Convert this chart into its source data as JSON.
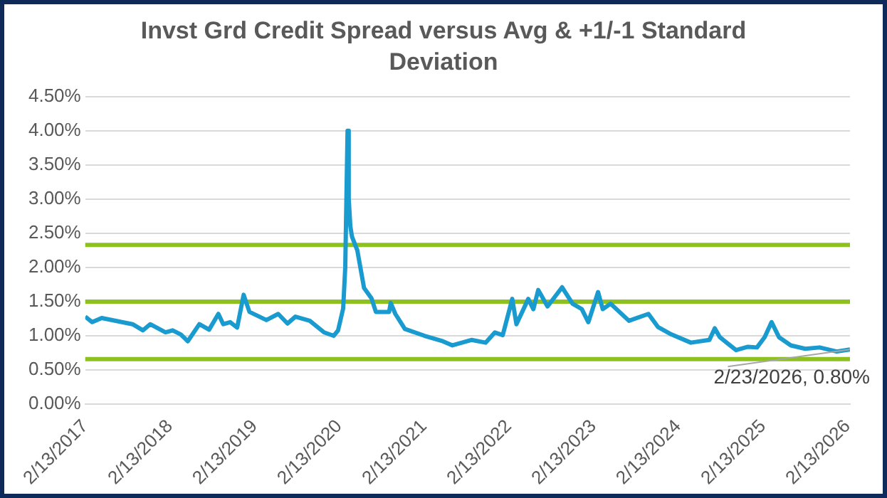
{
  "chart_data": {
    "type": "line",
    "title": "Invst Grd Credit Spread versus Avg & +1/-1 Standard Deviation",
    "x": [
      "2017-02-13",
      "2017-03-15",
      "2017-04-25",
      "2017-09-05",
      "2017-10-20",
      "2017-11-20",
      "2018-01-25",
      "2018-02-25",
      "2018-04-01",
      "2018-05-01",
      "2018-06-20",
      "2018-08-01",
      "2018-09-10",
      "2018-10-01",
      "2018-10-31",
      "2018-11-30",
      "2018-12-28",
      "2019-01-22",
      "2019-04-05",
      "2019-05-26",
      "2019-07-05",
      "2019-08-08",
      "2019-10-09",
      "2019-12-10",
      "2020-01-20",
      "2020-02-08",
      "2020-03-01",
      "2020-03-10",
      "2020-03-20",
      "2020-03-25",
      "2020-04-01",
      "2020-04-08",
      "2020-05-01",
      "2020-05-30",
      "2020-07-01",
      "2020-07-20",
      "2020-09-15",
      "2020-09-22",
      "2020-10-12",
      "2020-11-22",
      "2021-02-15",
      "2021-05-05",
      "2021-06-15",
      "2021-09-05",
      "2021-11-05",
      "2021-12-15",
      "2022-01-18",
      "2022-02-28",
      "2022-03-18",
      "2022-05-08",
      "2022-05-30",
      "2022-06-20",
      "2022-07-30",
      "2022-10-01",
      "2022-11-15",
      "2022-12-25",
      "2023-01-22",
      "2023-03-05",
      "2023-03-25",
      "2023-04-28",
      "2023-07-16",
      "2023-10-08",
      "2023-11-18",
      "2024-01-15",
      "2024-04-08",
      "2024-06-27",
      "2024-07-20",
      "2024-08-11",
      "2024-10-20",
      "2024-12-10",
      "2025-01-18",
      "2025-02-20",
      "2025-03-22",
      "2025-04-23",
      "2025-06-13",
      "2025-08-14",
      "2025-10-15",
      "2025-12-28",
      "2026-02-23"
    ],
    "series": [
      {
        "color": "#1a9bd0",
        "values": [
          1.28,
          1.2,
          1.26,
          1.17,
          1.08,
          1.17,
          1.05,
          1.08,
          1.02,
          0.92,
          1.17,
          1.09,
          1.32,
          1.17,
          1.2,
          1.12,
          1.6,
          1.35,
          1.23,
          1.32,
          1.18,
          1.28,
          1.22,
          1.05,
          1.0,
          1.08,
          1.4,
          2.0,
          4.0,
          3.0,
          2.6,
          2.45,
          2.25,
          1.7,
          1.55,
          1.35,
          1.35,
          1.48,
          1.32,
          1.1,
          1.0,
          0.92,
          0.86,
          0.94,
          0.9,
          1.05,
          1.01,
          1.54,
          1.17,
          1.54,
          1.39,
          1.67,
          1.43,
          1.71,
          1.47,
          1.39,
          1.2,
          1.64,
          1.39,
          1.47,
          1.22,
          1.32,
          1.13,
          1.02,
          0.9,
          0.94,
          1.11,
          0.98,
          0.79,
          0.84,
          0.83,
          0.98,
          1.2,
          0.98,
          0.86,
          0.81,
          0.83,
          0.77,
          0.8
        ]
      }
    ],
    "xlim": [
      "2017-02-13",
      "2026-02-23"
    ],
    "xticks": [
      {
        "value": "2017-02-13",
        "label": "2/13/2017"
      },
      {
        "value": "2018-02-13",
        "label": "2/13/2018"
      },
      {
        "value": "2019-02-13",
        "label": "2/13/2019"
      },
      {
        "value": "2020-02-13",
        "label": "2/13/2020"
      },
      {
        "value": "2021-02-13",
        "label": "2/13/2021"
      },
      {
        "value": "2022-02-13",
        "label": "2/13/2022"
      },
      {
        "value": "2023-02-13",
        "label": "2/13/2023"
      },
      {
        "value": "2024-02-13",
        "label": "2/13/2024"
      },
      {
        "value": "2025-02-13",
        "label": "2/13/2025"
      },
      {
        "value": "2026-02-13",
        "label": "2/13/2026"
      }
    ],
    "ylim": [
      0,
      4.5
    ],
    "yticks": [
      {
        "value": 0,
        "label": "0.00%"
      },
      {
        "value": 0.5,
        "label": "0.50%"
      },
      {
        "value": 1,
        "label": "1.00%"
      },
      {
        "value": 1.5,
        "label": "1.50%"
      },
      {
        "value": 2,
        "label": "2.00%"
      },
      {
        "value": 2.5,
        "label": "2.50%"
      },
      {
        "value": 3,
        "label": "3.00%"
      },
      {
        "value": 3.5,
        "label": "3.50%"
      },
      {
        "value": 4,
        "label": "4.00%"
      },
      {
        "value": 4.5,
        "label": "4.50%"
      }
    ],
    "ref_lines": [
      {
        "axis": "y",
        "value": 2.33,
        "color": "#8cc11f"
      },
      {
        "axis": "y",
        "value": 1.5,
        "color": "#8cc11f"
      },
      {
        "axis": "y",
        "value": 0.66,
        "color": "#8cc11f"
      }
    ],
    "annotations": [
      {
        "text": "2/23/2026, 0.80%",
        "x": "2026-02-23",
        "y": 0.8
      }
    ],
    "grid": "y",
    "legend": false,
    "marker": "none",
    "line_style": "solid"
  }
}
